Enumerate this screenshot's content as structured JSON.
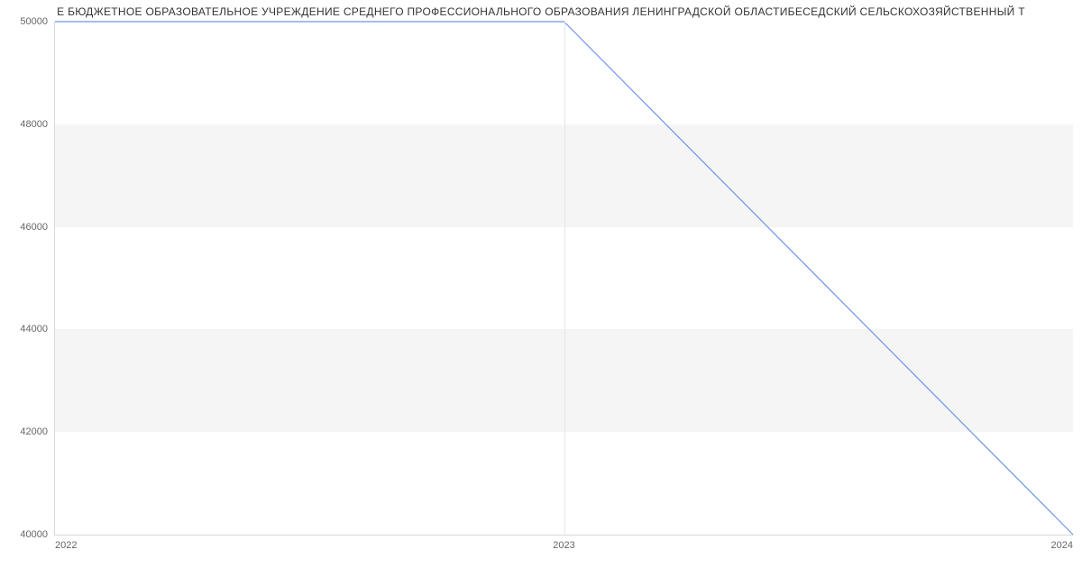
{
  "chart": {
    "type": "line",
    "title": "Е БЮДЖЕТНОЕ ОБРАЗОВАТЕЛЬНОЕ УЧРЕЖДЕНИЕ СРЕДНЕГО ПРОФЕССИОНАЛЬНОГО ОБРАЗОВАНИЯ ЛЕНИНГРАДСКОЙ ОБЛАСТИБЕСЕДСКИЙ СЕЛЬСКОХОЗЯЙСТВЕННЫЙ Т",
    "title_fontsize": 12,
    "title_color": "#333333",
    "background_color": "#ffffff",
    "band_color": "#f5f5f5",
    "gridline_color": "#e6e6e6",
    "axis_color": "#d9d9d9",
    "label_color": "#666666",
    "label_fontsize": 11,
    "line_color": "#6f94e8",
    "line_width": 1.2,
    "x": {
      "categories": [
        "2022",
        "2023",
        "2024"
      ],
      "positions_pct": [
        0,
        50,
        100
      ]
    },
    "y": {
      "min": 40000,
      "max": 50000,
      "ticks": [
        40000,
        42000,
        44000,
        46000,
        48000,
        50000
      ],
      "bands": [
        {
          "from": 42000,
          "to": 44000
        },
        {
          "from": 46000,
          "to": 48000
        }
      ]
    },
    "series": [
      {
        "name": "value",
        "data": [
          {
            "x": "2022",
            "y": 50000
          },
          {
            "x": "2023",
            "y": 50000
          },
          {
            "x": "2024",
            "y": 40000
          }
        ]
      }
    ]
  }
}
